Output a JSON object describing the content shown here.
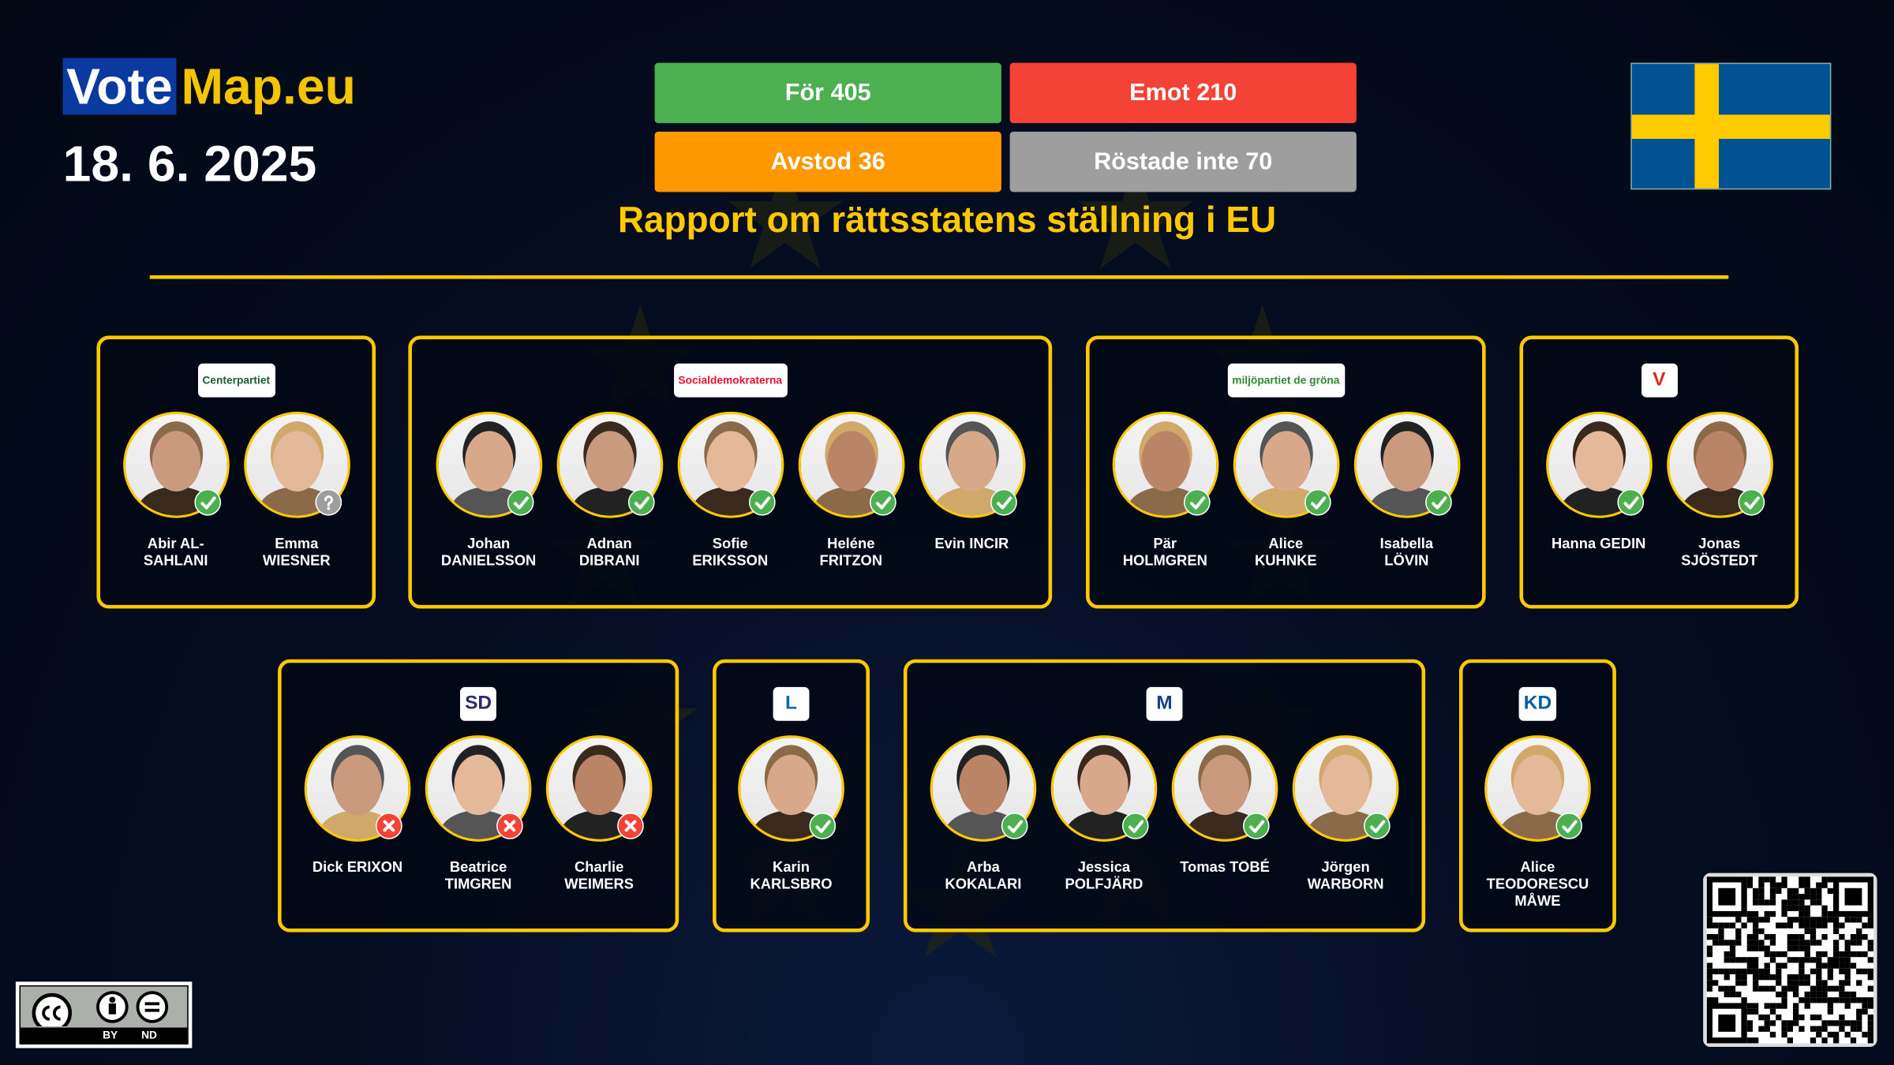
{
  "logo": {
    "part1": "Vote",
    "part2": "Map.eu"
  },
  "date": "18. 6. 2025",
  "results": {
    "for": "För 405",
    "against": "Emot 210",
    "abstain": "Avstod 36",
    "not_voted": "Röstade inte 70"
  },
  "colors": {
    "for": "#4caf50",
    "against": "#f44336",
    "abstain": "#ff9800",
    "not_voted": "#9e9e9e",
    "accent": "#ffc800"
  },
  "title": "Rapport om rättsstatens ställning i EU",
  "country_flag": "sweden-flag",
  "license": {
    "by": "BY",
    "nd": "ND"
  },
  "groups": [
    {
      "party": "Centerpartiet",
      "logo_color": "#1b5e3a",
      "members": [
        {
          "name": "Abir AL-\nSAHLANI",
          "vote": "for"
        },
        {
          "name": "Emma\nWIESNER",
          "vote": "not_voted"
        }
      ]
    },
    {
      "party": "Socialdemokraterna",
      "logo_color": "#e8112d",
      "members": [
        {
          "name": "Johan\nDANIELSSON",
          "vote": "for"
        },
        {
          "name": "Adnan\nDIBRANI",
          "vote": "for"
        },
        {
          "name": "Sofie\nERIKSSON",
          "vote": "for"
        },
        {
          "name": "Heléne\nFRITZON",
          "vote": "for"
        },
        {
          "name": "Evin INCIR",
          "vote": "for"
        }
      ]
    },
    {
      "party": "miljöpartiet de gröna",
      "logo_color": "#2e8b2e",
      "members": [
        {
          "name": "Pär\nHOLMGREN",
          "vote": "for"
        },
        {
          "name": "Alice\nKUHNKE",
          "vote": "for"
        },
        {
          "name": "Isabella\nLÖVIN",
          "vote": "for"
        }
      ]
    },
    {
      "party": "V",
      "logo_color": "#da291c",
      "members": [
        {
          "name": "Hanna GEDIN",
          "vote": "for"
        },
        {
          "name": "Jonas\nSJÖSTEDT",
          "vote": "for"
        }
      ]
    },
    {
      "party": "SD",
      "logo_color": "#2c2a6b",
      "members": [
        {
          "name": "Dick ERIXON",
          "vote": "against"
        },
        {
          "name": "Beatrice\nTIMGREN",
          "vote": "against"
        },
        {
          "name": "Charlie\nWEIMERS",
          "vote": "against"
        }
      ]
    },
    {
      "party": "L",
      "logo_color": "#006ab3",
      "members": [
        {
          "name": "Karin\nKARLSBRO",
          "vote": "for"
        }
      ]
    },
    {
      "party": "M",
      "logo_color": "#1b3f8b",
      "members": [
        {
          "name": "Arba\nKOKALARI",
          "vote": "for"
        },
        {
          "name": "Jessica\nPOLFJÄRD",
          "vote": "for"
        },
        {
          "name": "Tomas TOBÉ",
          "vote": "for"
        },
        {
          "name": "Jörgen\nWARBORN",
          "vote": "for"
        }
      ]
    },
    {
      "party": "KD",
      "logo_color": "#005ea1",
      "members": [
        {
          "name": "Alice\nTEODORESCU\nMÅWE",
          "vote": "for"
        }
      ]
    }
  ]
}
